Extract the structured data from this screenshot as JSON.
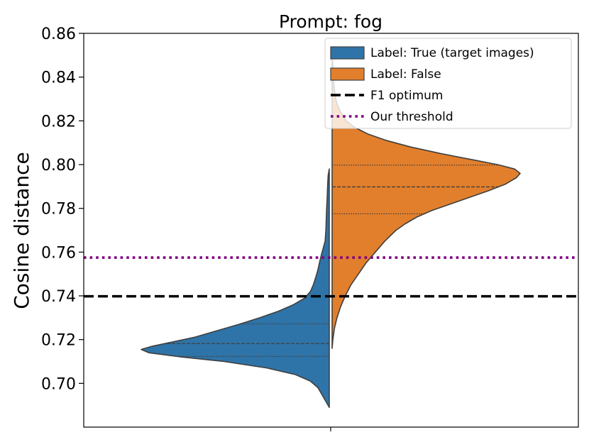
{
  "chart_data": {
    "type": "violin",
    "title": "Prompt: fog",
    "xlabel": "",
    "ylabel": "Cosine distance",
    "ylim": [
      0.68,
      0.86
    ],
    "yticks": [
      "0.70",
      "0.72",
      "0.74",
      "0.76",
      "0.78",
      "0.80",
      "0.82",
      "0.84",
      "0.86"
    ],
    "grid": false,
    "legend_position": "top-right",
    "series": [
      {
        "name": "Label: True (target images)",
        "side": "left",
        "color": "#2f74a8",
        "range": [
          0.689,
          0.798
        ],
        "quartiles": [
          0.7123,
          0.7182,
          0.7272
        ],
        "density": [
          [
            0.689,
            0.0
          ],
          [
            0.692,
            0.02
          ],
          [
            0.695,
            0.04
          ],
          [
            0.698,
            0.06
          ],
          [
            0.701,
            0.1
          ],
          [
            0.704,
            0.18
          ],
          [
            0.707,
            0.33
          ],
          [
            0.71,
            0.56
          ],
          [
            0.712,
            0.78
          ],
          [
            0.714,
            0.96
          ],
          [
            0.7155,
            1.0
          ],
          [
            0.717,
            0.94
          ],
          [
            0.719,
            0.83
          ],
          [
            0.721,
            0.72
          ],
          [
            0.724,
            0.6
          ],
          [
            0.727,
            0.48
          ],
          [
            0.73,
            0.37
          ],
          [
            0.733,
            0.27
          ],
          [
            0.736,
            0.19
          ],
          [
            0.739,
            0.13
          ],
          [
            0.742,
            0.1
          ],
          [
            0.745,
            0.085
          ],
          [
            0.749,
            0.07
          ],
          [
            0.752,
            0.06
          ],
          [
            0.756,
            0.05
          ],
          [
            0.76,
            0.038
          ],
          [
            0.765,
            0.022
          ],
          [
            0.77,
            0.018
          ],
          [
            0.775,
            0.016
          ],
          [
            0.78,
            0.014
          ],
          [
            0.785,
            0.011
          ],
          [
            0.79,
            0.009
          ],
          [
            0.795,
            0.006
          ],
          [
            0.798,
            0.0
          ]
        ]
      },
      {
        "name": "Label: False",
        "side": "right",
        "color": "#e27f2c",
        "range": [
          0.716,
          0.85
        ],
        "quartiles": [
          0.7775,
          0.7898,
          0.7998
        ],
        "density": [
          [
            0.716,
            0.0
          ],
          [
            0.72,
            0.004
          ],
          [
            0.725,
            0.012
          ],
          [
            0.73,
            0.026
          ],
          [
            0.735,
            0.045
          ],
          [
            0.74,
            0.07
          ],
          [
            0.745,
            0.1
          ],
          [
            0.75,
            0.14
          ],
          [
            0.755,
            0.18
          ],
          [
            0.76,
            0.23
          ],
          [
            0.765,
            0.28
          ],
          [
            0.77,
            0.34
          ],
          [
            0.773,
            0.39
          ],
          [
            0.776,
            0.45
          ],
          [
            0.779,
            0.53
          ],
          [
            0.782,
            0.63
          ],
          [
            0.785,
            0.73
          ],
          [
            0.788,
            0.83
          ],
          [
            0.791,
            0.92
          ],
          [
            0.794,
            0.98
          ],
          [
            0.796,
            1.0
          ],
          [
            0.798,
            0.97
          ],
          [
            0.8,
            0.88
          ],
          [
            0.802,
            0.76
          ],
          [
            0.805,
            0.58
          ],
          [
            0.808,
            0.42
          ],
          [
            0.811,
            0.29
          ],
          [
            0.814,
            0.19
          ],
          [
            0.817,
            0.12
          ],
          [
            0.82,
            0.075
          ],
          [
            0.824,
            0.045
          ],
          [
            0.828,
            0.025
          ],
          [
            0.832,
            0.015
          ],
          [
            0.836,
            0.01
          ],
          [
            0.84,
            0.007
          ],
          [
            0.845,
            0.004
          ],
          [
            0.85,
            0.0
          ]
        ]
      }
    ],
    "hlines": [
      {
        "name": "F1 optimum",
        "value": 0.7398,
        "style": "dashed",
        "color": "#000000"
      },
      {
        "name": "Our threshold",
        "value": 0.7575,
        "style": "dotted",
        "color": "#800080"
      }
    ]
  }
}
